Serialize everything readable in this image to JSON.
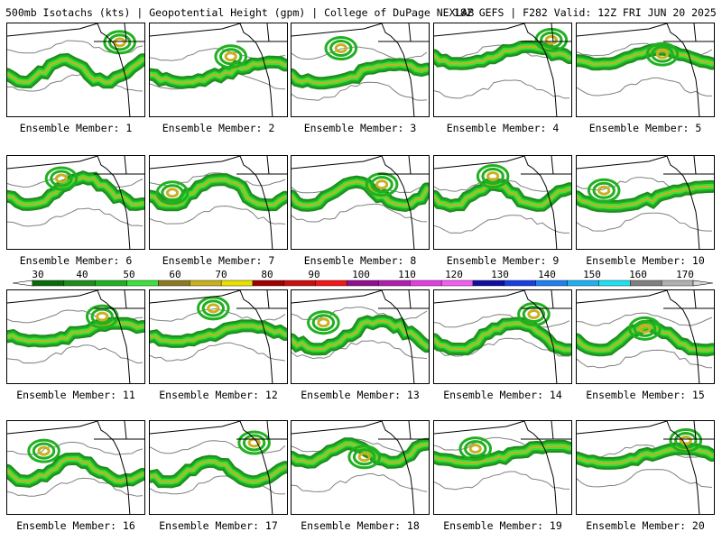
{
  "header": {
    "left": "500mb Isotachs (kts) | Geopotential Height (gpm) | College of DuPage NEXLAB",
    "right": "18Z GEFS | F282 Valid: 12Z FRI JUN 20 2025"
  },
  "colorbar": {
    "labels": [
      "30",
      "40",
      "50",
      "60",
      "70",
      "80",
      "90",
      "100",
      "110",
      "120",
      "130",
      "140",
      "150",
      "160",
      "170"
    ],
    "colors": [
      "#0a6b0a",
      "#1e8c1e",
      "#20b020",
      "#3ee03e",
      "#8a7a20",
      "#c8b020",
      "#e8e000",
      "#a00000",
      "#c81010",
      "#f01818",
      "#901090",
      "#b020b0",
      "#e040e0",
      "#f060f0",
      "#1010a0",
      "#1840e0",
      "#2080f0",
      "#20b0f0",
      "#20e0f0",
      "#808080",
      "#b0b0b0"
    ]
  },
  "panels": [
    {
      "label": "Ensemble Member: 1"
    },
    {
      "label": "Ensemble Member: 2"
    },
    {
      "label": "Ensemble Member: 3"
    },
    {
      "label": "Ensemble Member: 4"
    },
    {
      "label": "Ensemble Member: 5"
    },
    {
      "label": "Ensemble Member: 6"
    },
    {
      "label": "Ensemble Member: 7"
    },
    {
      "label": "Ensemble Member: 8"
    },
    {
      "label": "Ensemble Member: 9"
    },
    {
      "label": "Ensemble Member: 10"
    },
    {
      "label": "Ensemble Member: 11"
    },
    {
      "label": "Ensemble Member: 12"
    },
    {
      "label": "Ensemble Member: 13"
    },
    {
      "label": "Ensemble Member: 14"
    },
    {
      "label": "Ensemble Member: 15"
    },
    {
      "label": "Ensemble Member: 16"
    },
    {
      "label": "Ensemble Member: 17"
    },
    {
      "label": "Ensemble Member: 18"
    },
    {
      "label": "Ensemble Member: 19"
    },
    {
      "label": "Ensemble Member: 20"
    }
  ]
}
